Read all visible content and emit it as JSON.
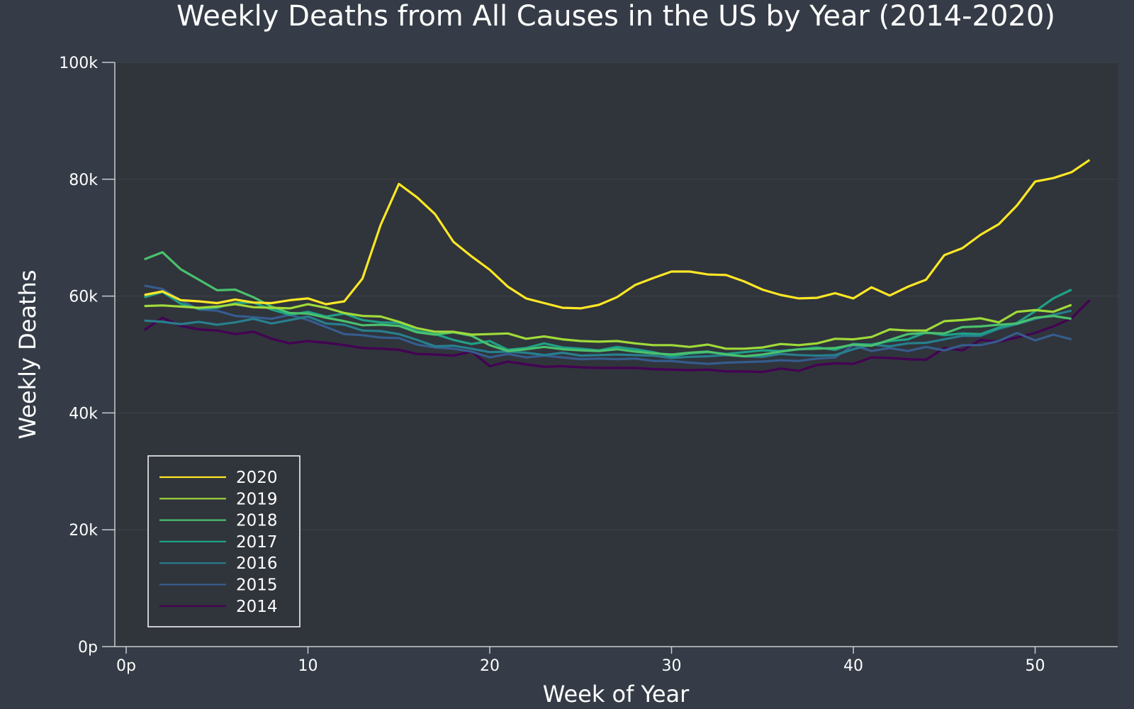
{
  "chart_data": {
    "type": "line",
    "title": "Weekly Deaths from All Causes in the US by Year (2014-2020)",
    "xlabel": "Week of Year",
    "ylabel": "Weekly Deaths",
    "xlim": [
      0,
      54
    ],
    "ylim": [
      0,
      100000
    ],
    "x_ticks": [
      0,
      10,
      20,
      30,
      40,
      50
    ],
    "x_tick_labels": [
      "0p",
      "10",
      "20",
      "30",
      "40",
      "50"
    ],
    "y_ticks": [
      0,
      20000,
      40000,
      60000,
      80000,
      100000
    ],
    "y_tick_labels": [
      "0p",
      "20k",
      "40k",
      "60k",
      "80k",
      "100k"
    ],
    "grid": true,
    "legend_position": "bottom-left",
    "colors": {
      "background": "#353c47",
      "plot_background": "#30343b",
      "grid": "#3c424b",
      "axis": "#c9ccd1",
      "text": "#ffffff"
    },
    "series": [
      {
        "name": "2020",
        "color": "#fde725",
        "values": [
          60200,
          60800,
          59300,
          59100,
          58800,
          59400,
          58900,
          58800,
          59300,
          59600,
          58600,
          59100,
          63000,
          72200,
          79200,
          76900,
          74000,
          69300,
          66800,
          64500,
          61600,
          59600,
          58800,
          58000,
          57900,
          58500,
          59800,
          61900,
          63100,
          64200,
          64200,
          63700,
          63600,
          62500,
          61100,
          60200,
          59600,
          59700,
          60500,
          59600,
          61500,
          60100,
          61600,
          62800,
          67000,
          68200,
          70500,
          72300,
          75500,
          79600,
          80200,
          81200,
          83300
        ]
      },
      {
        "name": "2019",
        "color": "#a0da39",
        "values": [
          58300,
          58400,
          58200,
          58000,
          58200,
          58600,
          58100,
          58000,
          57900,
          58600,
          58000,
          57100,
          56600,
          56500,
          55600,
          54500,
          53900,
          53900,
          53400,
          53500,
          53600,
          52700,
          53100,
          52600,
          52300,
          52200,
          52300,
          51900,
          51600,
          51600,
          51300,
          51700,
          51000,
          51000,
          51200,
          51800,
          51600,
          51900,
          52700,
          52600,
          53000,
          54300,
          54100,
          54100,
          55700,
          55900,
          56200,
          55500,
          57300,
          57600,
          57300,
          58500
        ]
      },
      {
        "name": "2018",
        "color": "#4ac16d",
        "values": [
          66300,
          67500,
          64600,
          62800,
          61000,
          61100,
          59800,
          58200,
          57100,
          57000,
          56300,
          55700,
          55000,
          55100,
          54900,
          53800,
          53400,
          53800,
          53200,
          51600,
          50600,
          50900,
          51300,
          50900,
          50700,
          50600,
          50900,
          50500,
          50200,
          50000,
          50300,
          50500,
          50000,
          49700,
          50000,
          50500,
          50900,
          51000,
          51100,
          51700,
          51500,
          52500,
          53500,
          53700,
          53600,
          54700,
          54800,
          55100,
          55300,
          56300,
          56600,
          56100
        ]
      },
      {
        "name": "2017",
        "color": "#1fa187",
        "values": [
          59800,
          60700,
          58700,
          57800,
          58000,
          58800,
          58900,
          57700,
          56800,
          57300,
          56500,
          57000,
          55900,
          55500,
          55400,
          54000,
          53500,
          52500,
          51800,
          52300,
          50800,
          51100,
          51900,
          51200,
          51000,
          50700,
          51300,
          50900,
          50400,
          49700,
          50200,
          50400,
          50100,
          50400,
          50700,
          50600,
          50900,
          51200,
          50800,
          51800,
          51700,
          52300,
          52600,
          53800,
          53300,
          53600,
          53500,
          54600,
          55400,
          57400,
          59600,
          61100
        ]
      },
      {
        "name": "2016",
        "color": "#277f8e",
        "values": [
          55800,
          55600,
          55200,
          55600,
          55100,
          55500,
          56100,
          55300,
          55900,
          56500,
          55300,
          55100,
          54100,
          54000,
          53500,
          52500,
          51400,
          51500,
          51000,
          50400,
          50500,
          50300,
          49900,
          50300,
          49800,
          49900,
          50000,
          49900,
          49800,
          49400,
          49600,
          49700,
          49900,
          49700,
          49600,
          50100,
          49900,
          49800,
          49900,
          50900,
          51700,
          51400,
          51900,
          52000,
          52600,
          53200,
          53200,
          54400,
          55200,
          56100,
          56800,
          57500
        ]
      },
      {
        "name": "2015",
        "color": "#365c8d",
        "values": [
          61800,
          61200,
          59300,
          57700,
          57500,
          56600,
          56400,
          56100,
          56800,
          55900,
          54700,
          53500,
          53300,
          52900,
          52800,
          51700,
          51200,
          51000,
          50500,
          49500,
          50100,
          49500,
          49800,
          49500,
          49200,
          49300,
          49200,
          49300,
          48900,
          48900,
          48600,
          48400,
          48600,
          48700,
          48800,
          49000,
          48900,
          49300,
          49500,
          51600,
          50600,
          51100,
          50600,
          51300,
          50700,
          51600,
          51600,
          52300,
          53700,
          52400,
          53400,
          52600
        ]
      },
      {
        "name": "2014",
        "color": "#440154",
        "values": [
          54200,
          56300,
          54900,
          54300,
          54100,
          53500,
          53900,
          52700,
          51900,
          52300,
          52000,
          51600,
          51100,
          51000,
          50800,
          50100,
          50000,
          49800,
          50500,
          48000,
          48800,
          48300,
          47900,
          48000,
          47800,
          47700,
          47700,
          47700,
          47500,
          47400,
          47300,
          47400,
          47100,
          47100,
          47000,
          47600,
          47200,
          48200,
          48500,
          48400,
          49500,
          49400,
          49200,
          49100,
          51100,
          50700,
          52500,
          52200,
          52900,
          53700,
          54800,
          56200,
          59300
        ]
      }
    ]
  }
}
